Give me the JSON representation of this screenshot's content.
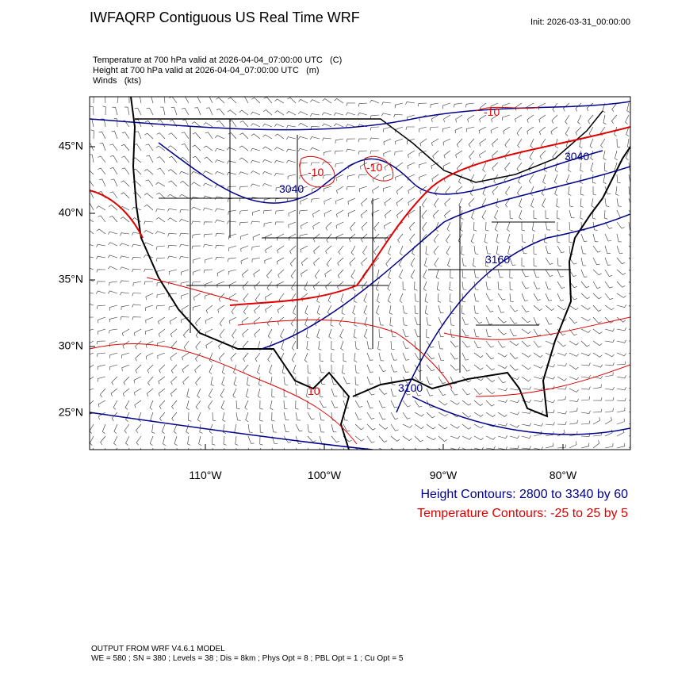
{
  "header": {
    "title": "IWFAQRP Contiguous US Real Time WRF",
    "init": "Init: 2026-03-31_00:00:00"
  },
  "fields": [
    "Temperature at 700 hPa valid at 2026-04-04_07:00:00 UTC   (C)",
    "Height at 700 hPa valid at 2026-04-04_07:00:00 UTC   (m)",
    "Winds   (kts)"
  ],
  "map": {
    "lat_labels": [
      "45°N",
      "40°N",
      "35°N",
      "30°N",
      "25°N"
    ],
    "lon_labels": [
      "110°W",
      "100°W",
      "90°W",
      "80°W"
    ],
    "contour_labels": {
      "temperature": [
        "-10",
        "-10",
        "-10",
        "10"
      ],
      "height": [
        "3040",
        "3040",
        "3160",
        "3100"
      ]
    }
  },
  "legend": [
    "Height Contours: 2800 to 3340 by 60",
    "Temperature Contours: -25 to 25 by 5"
  ],
  "footer": [
    "OUTPUT FROM WRF V4.6.1 MODEL",
    "WE = 580 ; SN = 380 ; Levels = 38 ; Dis = 8km ; Phys Opt = 8 ; PBL Opt = 1 ; Cu Opt = 5"
  ]
}
